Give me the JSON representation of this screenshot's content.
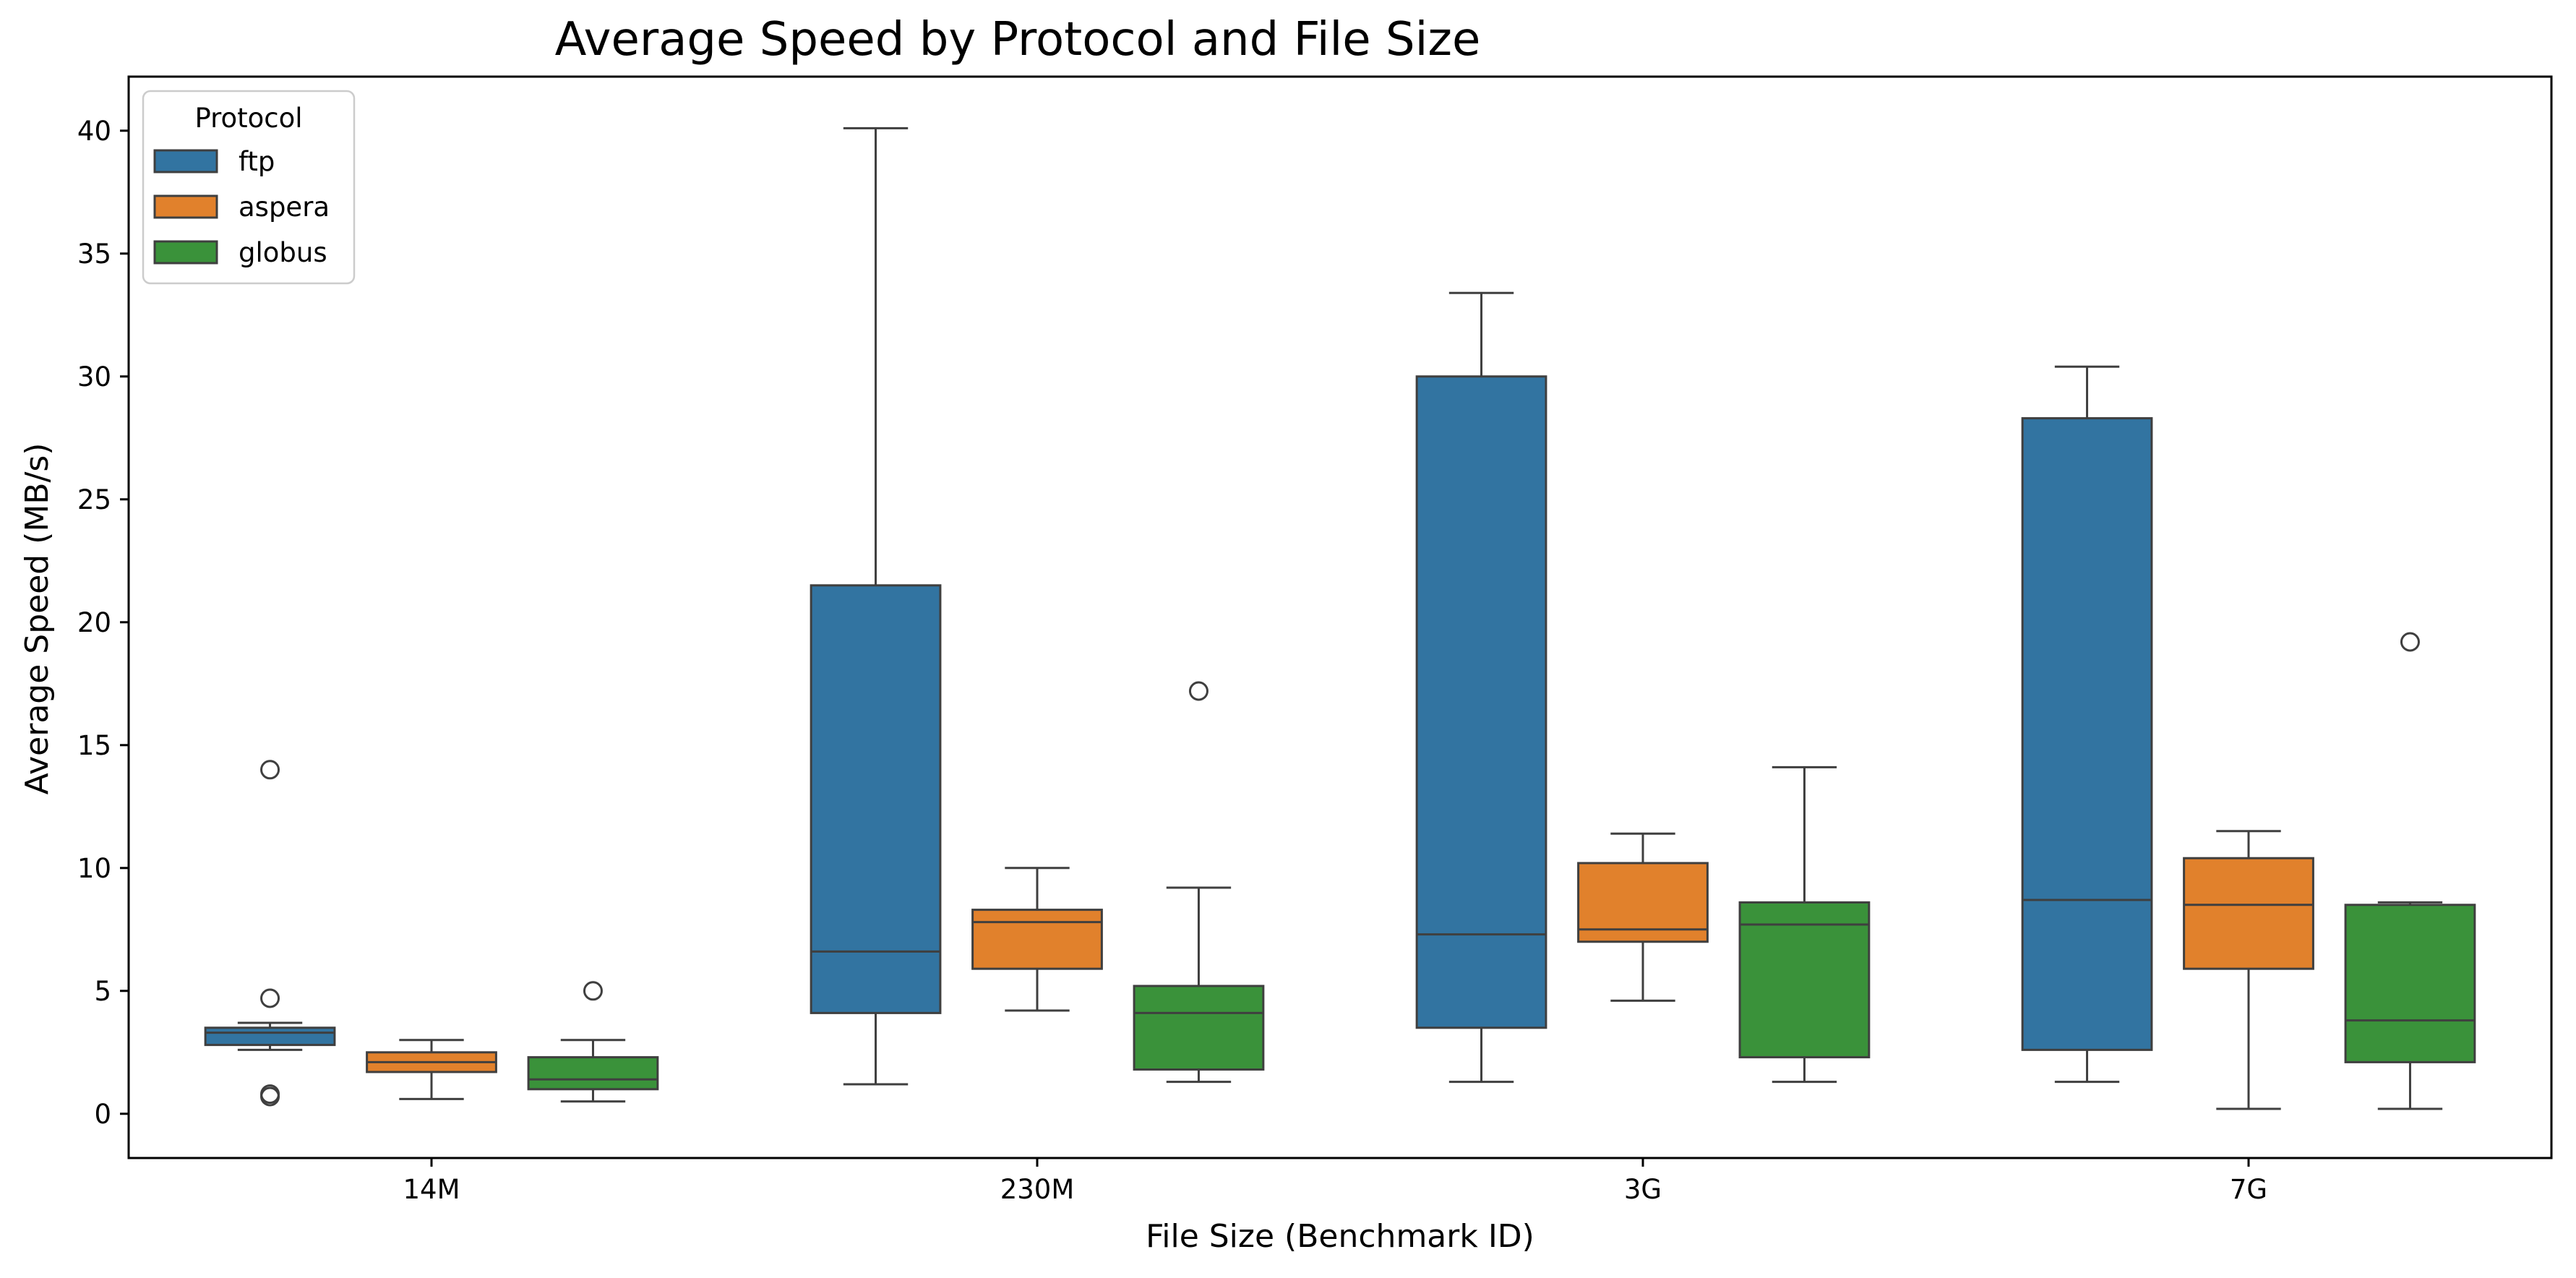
{
  "chart_data": {
    "type": "box",
    "title": "Average Speed by Protocol and File Size",
    "xlabel": "File Size (Benchmark ID)",
    "ylabel": "Average Speed (MB/s)",
    "ylim": [
      -1.8,
      42.2
    ],
    "yticks": [
      0,
      5,
      10,
      15,
      20,
      25,
      30,
      35,
      40
    ],
    "categories": [
      "14M",
      "230M",
      "3G",
      "7G"
    ],
    "legend": {
      "title": "Protocol",
      "position": "upper-left"
    },
    "grid": false,
    "series": [
      {
        "name": "ftp",
        "color": "#3274a1",
        "boxes": [
          {
            "whislo": 2.6,
            "q1": 2.8,
            "med": 3.3,
            "q3": 3.5,
            "whishi": 3.7,
            "fliers": [
              14.0,
              4.7,
              0.8,
              0.7
            ]
          },
          {
            "whislo": 1.2,
            "q1": 4.1,
            "med": 6.6,
            "q3": 21.5,
            "whishi": 40.1,
            "fliers": []
          },
          {
            "whislo": 1.3,
            "q1": 3.5,
            "med": 7.3,
            "q3": 30.0,
            "whishi": 33.4,
            "fliers": []
          },
          {
            "whislo": 1.3,
            "q1": 2.6,
            "med": 8.7,
            "q3": 28.3,
            "whishi": 30.4,
            "fliers": []
          }
        ]
      },
      {
        "name": "aspera",
        "color": "#e1812c",
        "boxes": [
          {
            "whislo": 0.6,
            "q1": 1.7,
            "med": 2.1,
            "q3": 2.5,
            "whishi": 3.0,
            "fliers": []
          },
          {
            "whislo": 4.2,
            "q1": 5.9,
            "med": 7.8,
            "q3": 8.3,
            "whishi": 10.0,
            "fliers": []
          },
          {
            "whislo": 4.6,
            "q1": 7.0,
            "med": 7.5,
            "q3": 10.2,
            "whishi": 11.4,
            "fliers": []
          },
          {
            "whislo": 0.2,
            "q1": 5.9,
            "med": 8.5,
            "q3": 10.4,
            "whishi": 11.5,
            "fliers": []
          }
        ]
      },
      {
        "name": "globus",
        "color": "#3a923a",
        "boxes": [
          {
            "whislo": 0.5,
            "q1": 1.0,
            "med": 1.4,
            "q3": 2.3,
            "whishi": 3.0,
            "fliers": [
              5.0
            ]
          },
          {
            "whislo": 1.3,
            "q1": 1.8,
            "med": 4.1,
            "q3": 5.2,
            "whishi": 9.2,
            "fliers": [
              17.2
            ]
          },
          {
            "whislo": 1.3,
            "q1": 2.3,
            "med": 7.7,
            "q3": 8.6,
            "whishi": 14.1,
            "fliers": []
          },
          {
            "whislo": 0.2,
            "q1": 2.1,
            "med": 3.8,
            "q3": 8.5,
            "whishi": 8.6,
            "fliers": [
              19.2
            ]
          }
        ]
      }
    ]
  }
}
